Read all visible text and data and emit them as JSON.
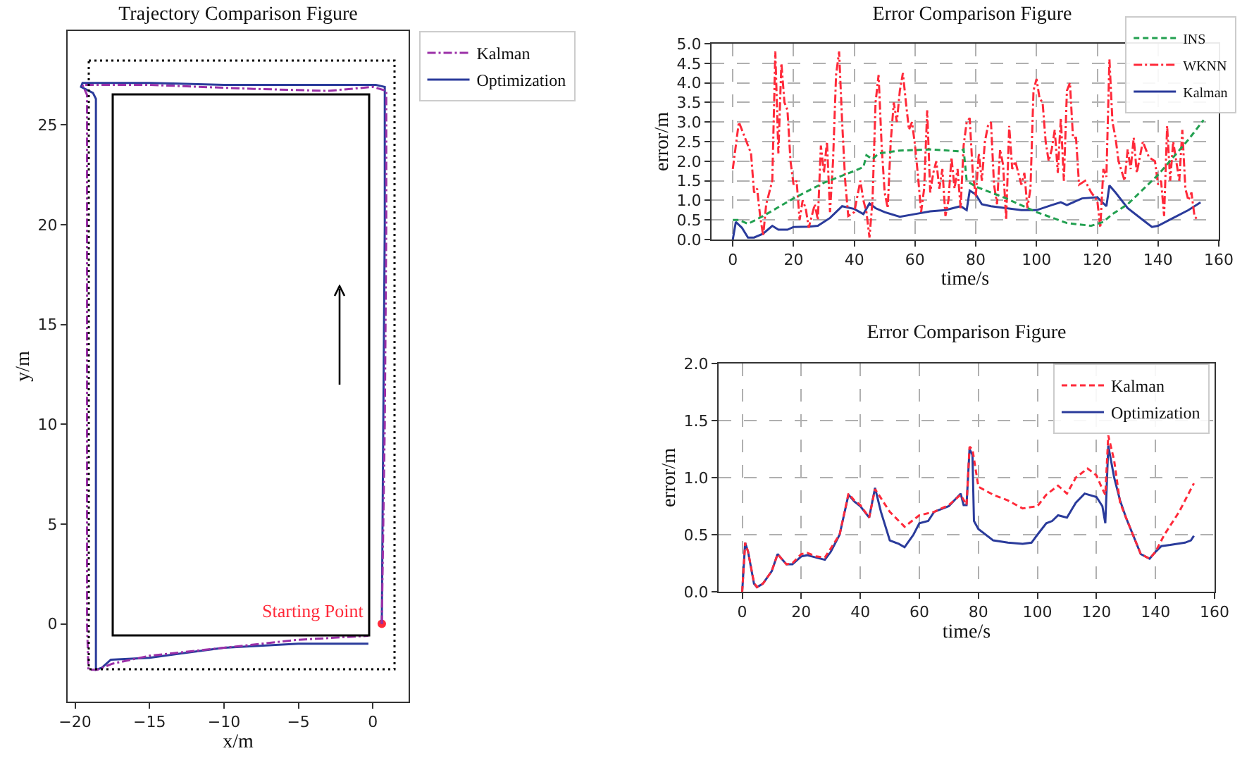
{
  "chart_data": [
    {
      "type": "line",
      "title": "Trajectory Comparison Figure",
      "xlabel": "x/m",
      "ylabel": "y/m",
      "xlim": [
        -20.5,
        2.4
      ],
      "ylim": [
        -3.9,
        29.7
      ],
      "xticks": [
        -20,
        -15,
        -10,
        -5,
        0
      ],
      "yticks": [
        0,
        5,
        10,
        15,
        20,
        25
      ],
      "grid": false,
      "legend": "top right",
      "annotations": [
        {
          "text": "Starting Point",
          "x": 0.6,
          "y": 0
        }
      ],
      "series": [
        {
          "name": "Kalman",
          "color": "#9b30a8",
          "line_style": "dashdot",
          "x": [
            0.6,
            0.8,
            0.9,
            0.9,
            0,
            -3,
            -8,
            -15,
            -19.5,
            -19.2,
            -19.2,
            -19.2,
            -19.2,
            -19.1,
            -18.5,
            -17.5,
            -15,
            -10,
            -5,
            -0.3
          ],
          "values": [
            0,
            10,
            20,
            26.7,
            26.9,
            26.7,
            26.8,
            27.0,
            27.0,
            26.5,
            20,
            10,
            0,
            -2.3,
            -2.3,
            -2.0,
            -1.6,
            -1.2,
            -0.8,
            -0.6
          ]
        },
        {
          "name": "Optimization",
          "color": "#2a3b9b",
          "line_style": "solid",
          "x": [
            0.6,
            0.7,
            0.8,
            0.8,
            0.2,
            -5,
            -10,
            -15,
            -19.5,
            -19.6,
            -18.8,
            -18.6,
            -18.6,
            -18.6,
            -18.6,
            -18.6,
            -18.2,
            -17.6,
            -15,
            -10,
            -5,
            -0.3
          ],
          "values": [
            0,
            10,
            20,
            26.9,
            27.0,
            27.0,
            27.0,
            27.1,
            27.1,
            26.9,
            26.6,
            26.3,
            20,
            10,
            0,
            -2.3,
            -2.2,
            -1.8,
            -1.7,
            -1.2,
            -1.0,
            -1.0
          ]
        },
        {
          "type": "scatter",
          "color": "#ff2a3a",
          "marker": "circle",
          "x": [
            0.6
          ],
          "values": [
            0
          ]
        }
      ]
    },
    {
      "type": "line",
      "title": "Error Comparison Figure",
      "xlabel": "time/s",
      "ylabel": "error/m",
      "xlim": [
        -7,
        160
      ],
      "ylim": [
        0,
        5
      ],
      "xticks": [
        0,
        20,
        40,
        60,
        80,
        100,
        120,
        140,
        160
      ],
      "yticks": [
        {
          "value": 0,
          "label": "0.0"
        },
        {
          "value": 0.5,
          "label": "0.5"
        },
        {
          "value": 1,
          "label": "1.0"
        },
        {
          "value": 1.5,
          "label": "1.5"
        },
        {
          "value": 2,
          "label": "2.0"
        },
        {
          "value": 2.5,
          "label": "2.5"
        },
        {
          "value": 3,
          "label": "3.0"
        },
        {
          "value": 3.5,
          "label": "3.5"
        },
        {
          "value": 4,
          "label": "4.0"
        },
        {
          "value": 4.5,
          "label": "4.5"
        },
        {
          "value": 5,
          "label": "5.0"
        }
      ],
      "grid": true,
      "legend": "top right",
      "series": [
        {
          "name": "INS",
          "color": "#22a050",
          "line_style": "dashed",
          "x": [
            0,
            2,
            5,
            10,
            20,
            30,
            40,
            43,
            44,
            46,
            48,
            55,
            65,
            75,
            76,
            77,
            80,
            90,
            100,
            110,
            118,
            122,
            125,
            130,
            140,
            150,
            155
          ],
          "values": [
            0.5,
            0.5,
            0.4,
            0.6,
            1.05,
            1.45,
            1.75,
            1.85,
            2.15,
            2.05,
            2.2,
            2.27,
            2.3,
            2.25,
            2.3,
            1.5,
            1.35,
            1.05,
            0.7,
            0.42,
            0.35,
            0.45,
            0.65,
            0.9,
            1.65,
            2.55,
            3.05
          ]
        },
        {
          "name": "WKNN",
          "color": "#ff2a3a",
          "line_style": "dashdot",
          "x": [
            0,
            2,
            4,
            6,
            7,
            8,
            9,
            10,
            11,
            12,
            13,
            14,
            15,
            16,
            17,
            18,
            19,
            20,
            21,
            22,
            23,
            24,
            25,
            27,
            28,
            29,
            30,
            31,
            32,
            33,
            34,
            35,
            36,
            37,
            38,
            40,
            42,
            43,
            44,
            45,
            46,
            47,
            48,
            49,
            50,
            51,
            52,
            53,
            54,
            55,
            56,
            57,
            58,
            59,
            60,
            61,
            62,
            63,
            64,
            65,
            66,
            67,
            68,
            69,
            70,
            71,
            72,
            73,
            74,
            75,
            76,
            77,
            78,
            79,
            80,
            81,
            82,
            83,
            84,
            85,
            86,
            87,
            88,
            89,
            90,
            91,
            92,
            93,
            95,
            96,
            97,
            98,
            99,
            100,
            101,
            102,
            103,
            104,
            105,
            106,
            107,
            108,
            109,
            110,
            111,
            112,
            113,
            114,
            116,
            118,
            120,
            121,
            122,
            123,
            124,
            125,
            126,
            127,
            128,
            129,
            130,
            131,
            132,
            133,
            134,
            135,
            136,
            137,
            138,
            139,
            140,
            141,
            142,
            143,
            144,
            145,
            146,
            147,
            148,
            149,
            150,
            151,
            152,
            153
          ],
          "values": [
            1.8,
            3.0,
            2.6,
            2.2,
            1.2,
            1.3,
            0.6,
            0.1,
            0.9,
            1.2,
            1.5,
            4.8,
            2.2,
            4.5,
            3.5,
            3.3,
            2.0,
            1.4,
            1.5,
            0.5,
            1.0,
            0.8,
            0.3,
            0.9,
            0.5,
            2.4,
            1.7,
            2.5,
            0.7,
            2.0,
            4.2,
            4.8,
            3.0,
            1.5,
            0.6,
            0.7,
            1.5,
            1.0,
            0.7,
            0.05,
            1.0,
            3.5,
            4.2,
            2.4,
            1.2,
            0.8,
            2.5,
            3.5,
            3.0,
            3.8,
            4.25,
            3.5,
            2.8,
            3.0,
            2.4,
            1.6,
            0.7,
            1.3,
            3.3,
            1.2,
            1.7,
            2.0,
            1.3,
            1.8,
            0.6,
            1.0,
            2.1,
            1.3,
            1.8,
            0.8,
            2.4,
            3.0,
            3.1,
            1.7,
            1.1,
            2.2,
            1.5,
            2.5,
            2.9,
            3.0,
            1.4,
            0.9,
            2.3,
            1.9,
            0.5,
            2.9,
            1.8,
            2.0,
            1.4,
            1.7,
            0.8,
            1.3,
            3.8,
            4.1,
            3.6,
            3.5,
            2.5,
            2.0,
            2.3,
            2.8,
            1.7,
            3.1,
            1.5,
            3.8,
            4.0,
            2.6,
            2.6,
            1.4,
            1.5,
            1.2,
            1.0,
            0.3,
            1.8,
            1.6,
            4.6,
            3.0,
            2.6,
            2.0,
            null,
            1.5,
            2.3,
            1.8,
            2.6,
            1.7,
            null,
            2.5,
            null,
            2.1,
            null,
            2.0,
            1.4,
            1.5,
            0.6,
            2.9,
            1.5,
            2.5,
            null,
            1.5,
            2.8,
            1.3,
            1.0,
            1.2,
            0.6,
            0.5
          ]
        },
        {
          "name": "Kalman",
          "color": "#2a3b9b",
          "line_style": "solid",
          "x": [
            0,
            1,
            3,
            5,
            7,
            10,
            13,
            15,
            18,
            20,
            25,
            28,
            32,
            36,
            40,
            43,
            45,
            47,
            50,
            55,
            60,
            65,
            70,
            75,
            77,
            78,
            80,
            82,
            85,
            90,
            95,
            100,
            105,
            108,
            110,
            115,
            120,
            123,
            124,
            126,
            130,
            135,
            138,
            140,
            145,
            150,
            154
          ],
          "values": [
            0,
            0.45,
            0.3,
            0.05,
            0.05,
            0.15,
            0.35,
            0.25,
            0.25,
            0.32,
            0.33,
            0.35,
            0.55,
            0.85,
            0.78,
            0.65,
            0.92,
            0.8,
            0.7,
            0.58,
            0.65,
            0.72,
            0.75,
            0.85,
            0.75,
            1.25,
            1.15,
            0.9,
            0.85,
            0.8,
            0.75,
            0.75,
            0.88,
            0.95,
            0.88,
            1.05,
            1.08,
            0.85,
            1.38,
            1.2,
            0.8,
            0.5,
            0.32,
            0.35,
            0.55,
            0.75,
            0.95
          ]
        }
      ]
    },
    {
      "type": "line",
      "title": "Error Comparison Figure",
      "xlabel": "time/s",
      "ylabel": "error/m",
      "xlim": [
        -8,
        160
      ],
      "ylim": [
        0,
        2
      ],
      "xticks": [
        0,
        20,
        40,
        60,
        80,
        100,
        120,
        140,
        160
      ],
      "yticks": [
        {
          "value": 0,
          "label": "0.0"
        },
        {
          "value": 0.5,
          "label": "0.5"
        },
        {
          "value": 1,
          "label": "1.0"
        },
        {
          "value": 1.5,
          "label": "1.5"
        },
        {
          "value": 2,
          "label": "2.0"
        }
      ],
      "grid": true,
      "legend": "top right",
      "series": [
        {
          "name": "Kalman",
          "color": "#ff2a3a",
          "line_style": "dashed",
          "x": [
            0,
            1,
            2,
            4,
            5,
            7,
            10,
            12,
            13,
            15,
            17,
            20,
            22,
            25,
            28,
            30,
            33,
            36,
            38,
            40,
            43,
            45,
            47,
            50,
            55,
            60,
            65,
            70,
            74,
            76,
            77,
            78,
            80,
            85,
            90,
            95,
            100,
            103,
            107,
            110,
            113,
            117,
            120,
            122,
            123,
            124,
            126,
            128,
            130,
            135,
            138,
            140,
            143,
            148,
            153
          ],
          "values": [
            0,
            0.43,
            0.35,
            0.08,
            0.04,
            0.07,
            0.18,
            0.33,
            0.3,
            0.24,
            0.25,
            0.33,
            0.34,
            0.31,
            0.3,
            0.38,
            0.5,
            0.86,
            0.8,
            0.76,
            0.65,
            0.9,
            0.82,
            0.7,
            0.57,
            0.67,
            0.7,
            0.76,
            0.85,
            0.76,
            1.27,
            1.25,
            0.92,
            0.85,
            0.8,
            0.73,
            0.75,
            0.85,
            0.93,
            0.86,
            1.0,
            1.08,
            1.02,
            0.9,
            0.85,
            1.37,
            1.15,
            0.78,
            0.65,
            0.33,
            0.29,
            0.35,
            0.5,
            0.7,
            0.95
          ]
        },
        {
          "name": "Optimization",
          "color": "#2a3b9b",
          "line_style": "solid",
          "x": [
            0,
            1,
            2,
            4,
            5,
            7,
            10,
            12,
            13,
            15,
            17,
            20,
            22,
            25,
            28,
            30,
            33,
            36,
            38,
            40,
            43,
            45,
            47,
            50,
            53,
            55,
            58,
            60,
            63,
            65,
            70,
            74,
            75,
            76,
            77,
            78,
            78.5,
            80,
            85,
            90,
            95,
            98,
            100,
            103,
            105,
            107,
            110,
            113,
            116,
            120,
            122,
            123,
            124,
            126,
            128,
            130,
            135,
            138,
            140,
            142,
            145,
            150,
            152,
            153
          ],
          "values": [
            0,
            0.43,
            0.35,
            0.07,
            0.04,
            0.07,
            0.18,
            0.33,
            0.3,
            0.24,
            0.24,
            0.31,
            0.32,
            0.3,
            0.28,
            0.35,
            0.5,
            0.85,
            0.79,
            0.75,
            0.65,
            0.91,
            0.7,
            0.45,
            0.42,
            0.39,
            0.5,
            0.6,
            0.62,
            0.7,
            0.75,
            0.86,
            0.76,
            0.76,
            1.25,
            1.2,
            0.62,
            0.55,
            0.45,
            0.43,
            0.42,
            0.43,
            0.5,
            0.6,
            0.62,
            0.67,
            0.65,
            0.78,
            0.86,
            0.83,
            0.75,
            0.6,
            1.28,
            1.0,
            0.8,
            0.65,
            0.33,
            0.29,
            0.35,
            0.4,
            0.41,
            0.43,
            0.45,
            0.49
          ]
        }
      ]
    }
  ]
}
